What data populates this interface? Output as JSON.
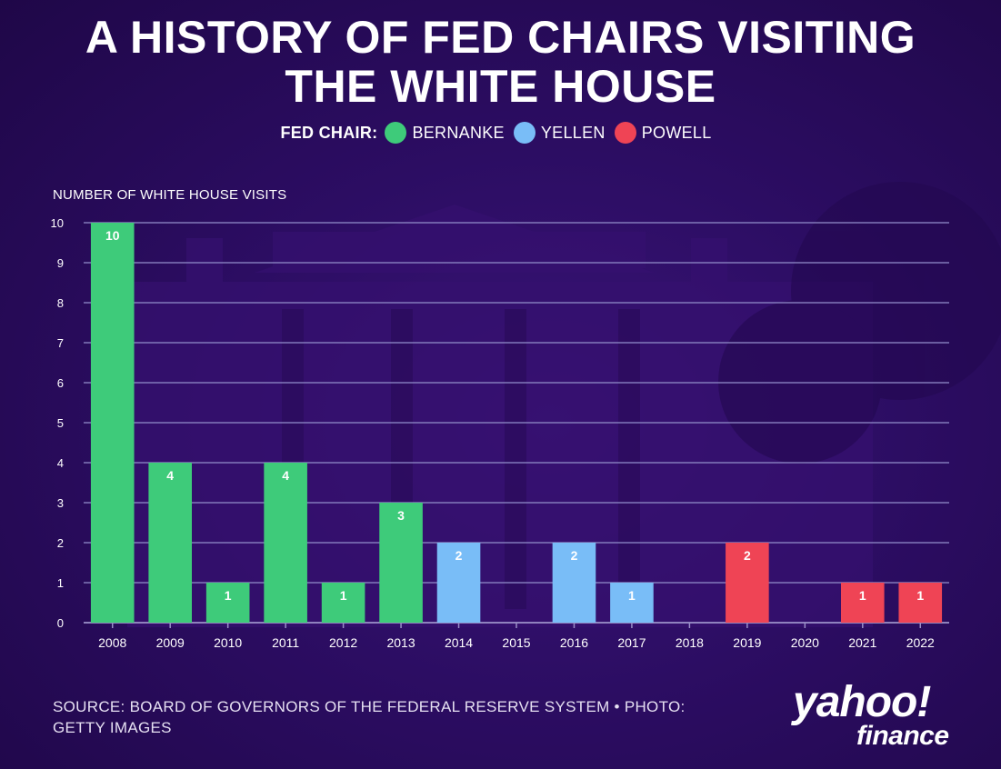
{
  "title_line1": "A HISTORY OF FED CHAIRS VISITING",
  "title_line2": "THE WHITE HOUSE",
  "legend": {
    "title": "FED CHAIR:",
    "items": [
      {
        "label": "BERNANKE",
        "color": "#3ecb7a"
      },
      {
        "label": "YELLEN",
        "color": "#79bdf7"
      },
      {
        "label": "POWELL",
        "color": "#ef4455"
      }
    ]
  },
  "source": "SOURCE: BOARD OF GOVERNORS OF THE FEDERAL RESERVE SYSTEM • PHOTO: GETTY IMAGES",
  "logo": {
    "brand": "yahoo!",
    "sub": "finance"
  },
  "chart_data": {
    "type": "bar",
    "title": "A HISTORY OF FED CHAIRS VISITING THE WHITE HOUSE",
    "ylabel": "NUMBER OF WHITE HOUSE VISITS",
    "xlabel": "",
    "ylim": [
      0,
      10
    ],
    "yticks": [
      0,
      1,
      2,
      3,
      4,
      5,
      6,
      7,
      8,
      9,
      10
    ],
    "grid": true,
    "legend_position": "top-center",
    "categories": [
      "2008",
      "2009",
      "2010",
      "2011",
      "2012",
      "2013",
      "2014",
      "2015",
      "2016",
      "2017",
      "2018",
      "2019",
      "2020",
      "2021",
      "2022"
    ],
    "values": [
      10,
      4,
      1,
      4,
      1,
      3,
      2,
      0,
      2,
      1,
      0,
      2,
      0,
      1,
      1
    ],
    "chair": [
      "BERNANKE",
      "BERNANKE",
      "BERNANKE",
      "BERNANKE",
      "BERNANKE",
      "BERNANKE",
      "YELLEN",
      "",
      "YELLEN",
      "YELLEN",
      "",
      "POWELL",
      "",
      "POWELL",
      "POWELL"
    ],
    "colors": {
      "BERNANKE": "#3ecb7a",
      "YELLEN": "#79bdf7",
      "POWELL": "#ef4455"
    },
    "axis_color": "#9a8fc7",
    "grid_color": "#8c86c4"
  }
}
